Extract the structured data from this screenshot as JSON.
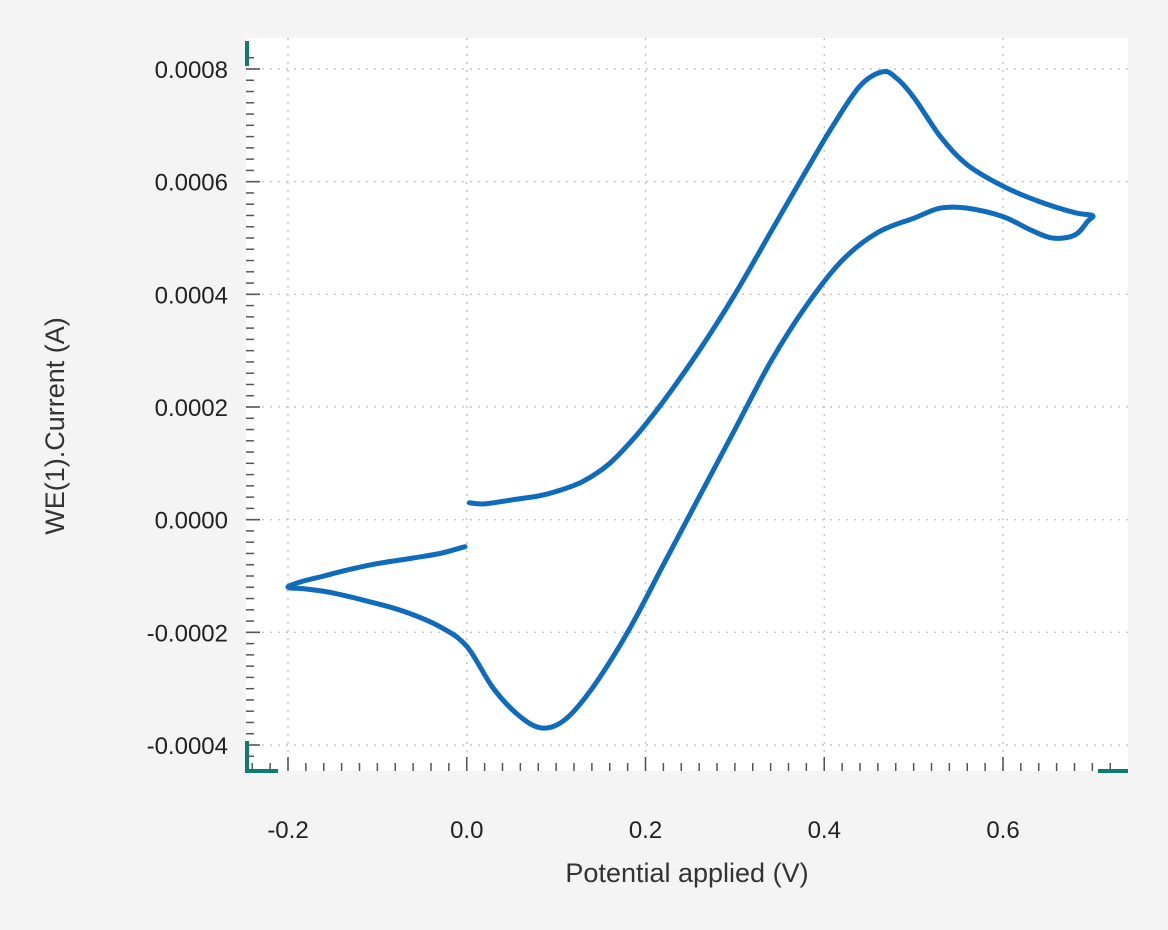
{
  "chart_data": {
    "type": "line",
    "xlabel": "Potential applied (V)",
    "ylabel": "WE(1).Current (A)",
    "xlim": [
      -0.25,
      0.735
    ],
    "ylim": [
      -0.00045,
      0.00083
    ],
    "x_ticks": [
      -0.2,
      0.0,
      0.2,
      0.4,
      0.6
    ],
    "x_tick_labels": [
      "-0.2",
      "0.0",
      "0.2",
      "0.4",
      "0.6"
    ],
    "y_ticks": [
      -0.0004,
      -0.0002,
      0.0,
      0.0002,
      0.0004,
      0.0006,
      0.0008
    ],
    "y_tick_labels": [
      "-0.0004",
      "-0.0002",
      "0.0000",
      "0.0002",
      "0.0004",
      "0.0006",
      "0.0008"
    ],
    "grid": true,
    "series_color": "#0f6cbd",
    "axis_color": "#0f7d6d",
    "series": [
      {
        "points": [
          [
            0.003,
            3e-05
          ],
          [
            0.02,
            2.8e-05
          ],
          [
            0.05,
            3.5e-05
          ],
          [
            0.08,
            4.2e-05
          ],
          [
            0.1,
            5e-05
          ],
          [
            0.13,
            6.8e-05
          ],
          [
            0.16,
            0.0001
          ],
          [
            0.19,
            0.00015
          ],
          [
            0.22,
            0.00021
          ],
          [
            0.26,
            0.0003
          ],
          [
            0.3,
            0.0004
          ],
          [
            0.34,
            0.00051
          ],
          [
            0.38,
            0.00062
          ],
          [
            0.41,
            0.0007
          ],
          [
            0.44,
            0.00077
          ],
          [
            0.465,
            0.000795
          ],
          [
            0.48,
            0.000785
          ],
          [
            0.5,
            0.00075
          ],
          [
            0.53,
            0.00068
          ],
          [
            0.56,
            0.00063
          ],
          [
            0.6,
            0.000592
          ],
          [
            0.64,
            0.000565
          ],
          [
            0.68,
            0.000545
          ],
          [
            0.7,
            0.00054
          ],
          [
            0.695,
            0.00053
          ],
          [
            0.68,
            0.000505
          ],
          [
            0.655,
            0.0005
          ],
          [
            0.63,
            0.000515
          ],
          [
            0.6,
            0.000538
          ],
          [
            0.56,
            0.000553
          ],
          [
            0.53,
            0.000553
          ],
          [
            0.5,
            0.000535
          ],
          [
            0.46,
            0.00051
          ],
          [
            0.42,
            0.00046
          ],
          [
            0.38,
            0.00038
          ],
          [
            0.34,
            0.00028
          ],
          [
            0.3,
            0.00016
          ],
          [
            0.26,
            4e-05
          ],
          [
            0.22,
            -8e-05
          ],
          [
            0.18,
            -0.0002
          ],
          [
            0.14,
            -0.0003
          ],
          [
            0.11,
            -0.000355
          ],
          [
            0.085,
            -0.00037
          ],
          [
            0.06,
            -0.00035
          ],
          [
            0.03,
            -0.0003
          ],
          [
            0.0,
            -0.000225
          ],
          [
            -0.03,
            -0.00019
          ],
          [
            -0.07,
            -0.000163
          ],
          [
            -0.11,
            -0.000145
          ],
          [
            -0.15,
            -0.00013
          ],
          [
            -0.18,
            -0.000123
          ],
          [
            -0.2,
            -0.00012
          ],
          [
            -0.185,
            -0.00011
          ],
          [
            -0.16,
            -0.0001
          ],
          [
            -0.13,
            -8.8e-05
          ],
          [
            -0.1,
            -7.8e-05
          ],
          [
            -0.06,
            -6.8e-05
          ],
          [
            -0.03,
            -6e-05
          ],
          [
            -0.002,
            -4.8e-05
          ]
        ]
      }
    ]
  }
}
